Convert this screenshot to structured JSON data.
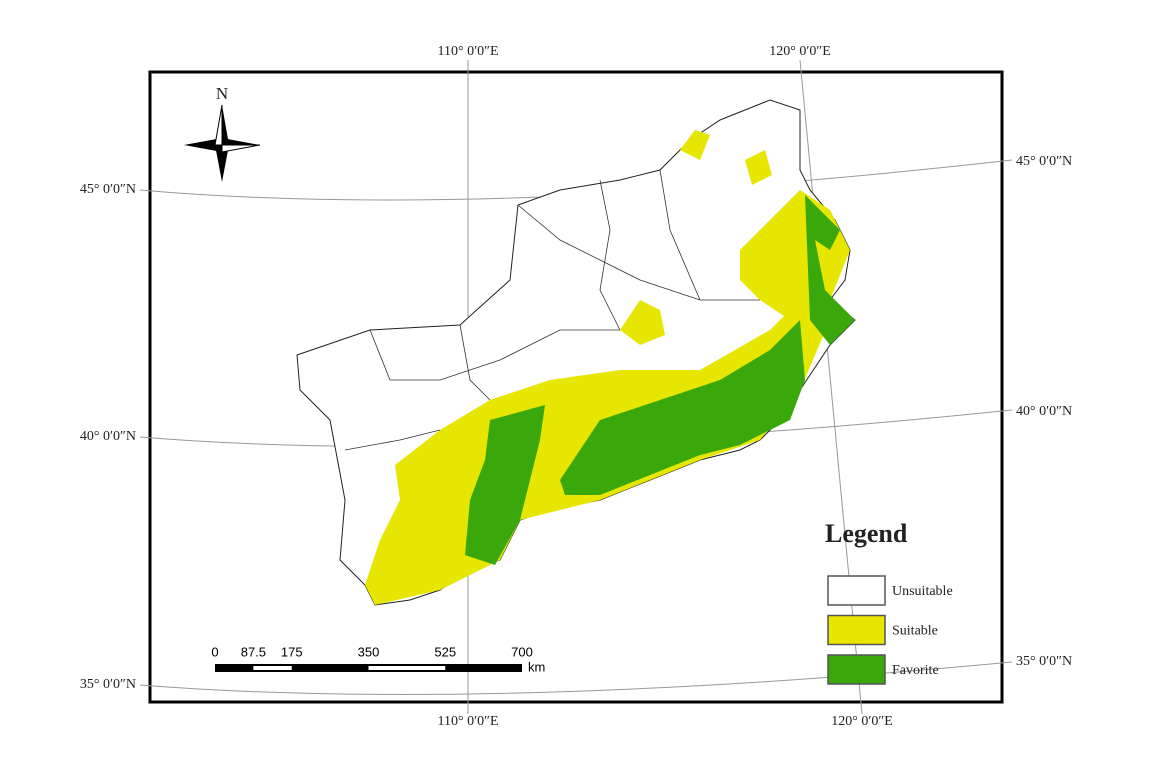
{
  "north_arrow": {
    "label": "N"
  },
  "graticule": {
    "top": [
      "110° 0′0″E",
      "120° 0′0″E"
    ],
    "bottom": [
      "110° 0′0″E",
      "120° 0′0″E"
    ],
    "left": [
      "45° 0′0″N",
      "40° 0′0″N",
      "35° 0′0″N"
    ],
    "right": [
      "45° 0′0″N",
      "40° 0′0″N",
      "35° 0′0″N"
    ]
  },
  "scale_bar": {
    "ticks": [
      0,
      87.5,
      175,
      350,
      525,
      700
    ],
    "unit": "km"
  },
  "legend": {
    "title": "Legend",
    "items": [
      {
        "label": "Unsuitable",
        "color": "#ffffff"
      },
      {
        "label": "Suitable",
        "color": "#e6e600"
      },
      {
        "label": "Favorite",
        "color": "#3aa80a"
      }
    ]
  }
}
